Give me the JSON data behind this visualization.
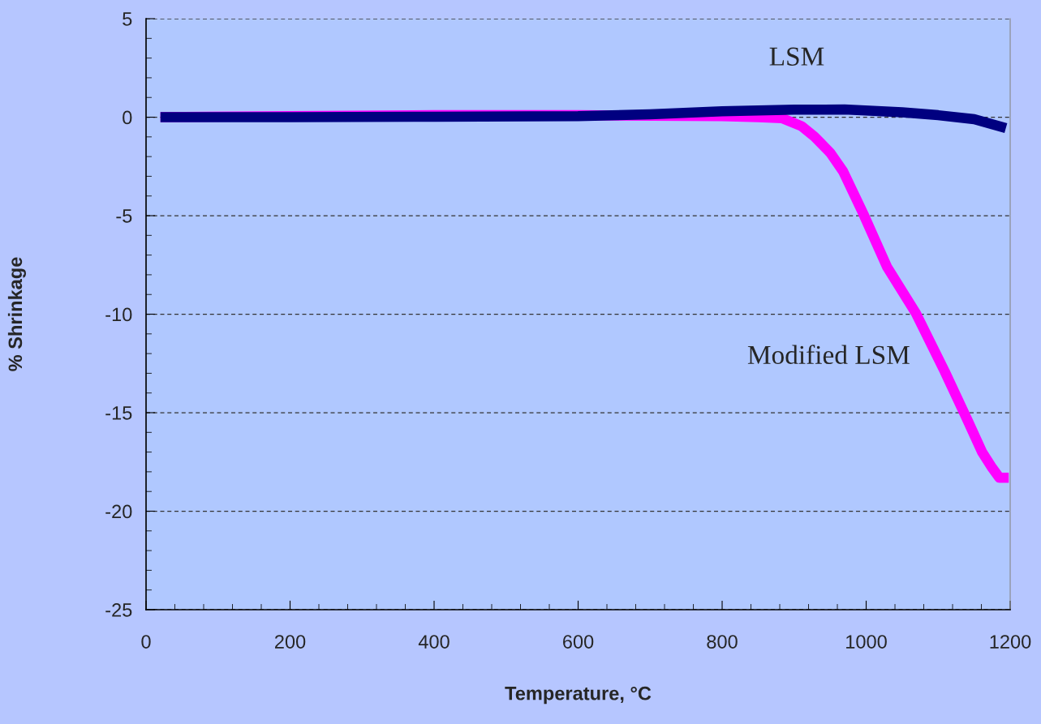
{
  "chart_data": {
    "type": "line",
    "xlabel": "Temperature, °C",
    "ylabel": "% Shrinkage",
    "xlim": [
      0,
      1200
    ],
    "xticks": [
      0,
      200,
      400,
      600,
      800,
      1000,
      1200
    ],
    "ylim": [
      -25,
      5
    ],
    "yticks": [
      -25,
      -20,
      -15,
      -10,
      -5,
      0,
      5
    ],
    "grid": "y",
    "line_style": "solid",
    "marker": "none",
    "series": [
      {
        "name": "Modified LSM",
        "color": "#ff00ff",
        "x": [
          20,
          200,
          400,
          600,
          800,
          850,
          883,
          910,
          928,
          950,
          968,
          996,
          1029,
          1069,
          1109,
          1141,
          1161,
          1175,
          1185,
          1198
        ],
        "values": [
          0,
          0.05,
          0.1,
          0.1,
          0.05,
          0,
          -0.05,
          -0.45,
          -0.98,
          -1.8,
          -2.75,
          -4.9,
          -7.6,
          -9.95,
          -12.9,
          -15.4,
          -17.0,
          -17.8,
          -18.3,
          -18.3
        ]
      },
      {
        "name": "LSM",
        "color": "#000080",
        "x": [
          20,
          200,
          400,
          600,
          700,
          800,
          900,
          970,
          1050,
          1100,
          1150,
          1194
        ],
        "values": [
          0,
          0,
          0.02,
          0.05,
          0.15,
          0.3,
          0.38,
          0.39,
          0.25,
          0.1,
          -0.1,
          -0.55
        ]
      }
    ]
  }
}
